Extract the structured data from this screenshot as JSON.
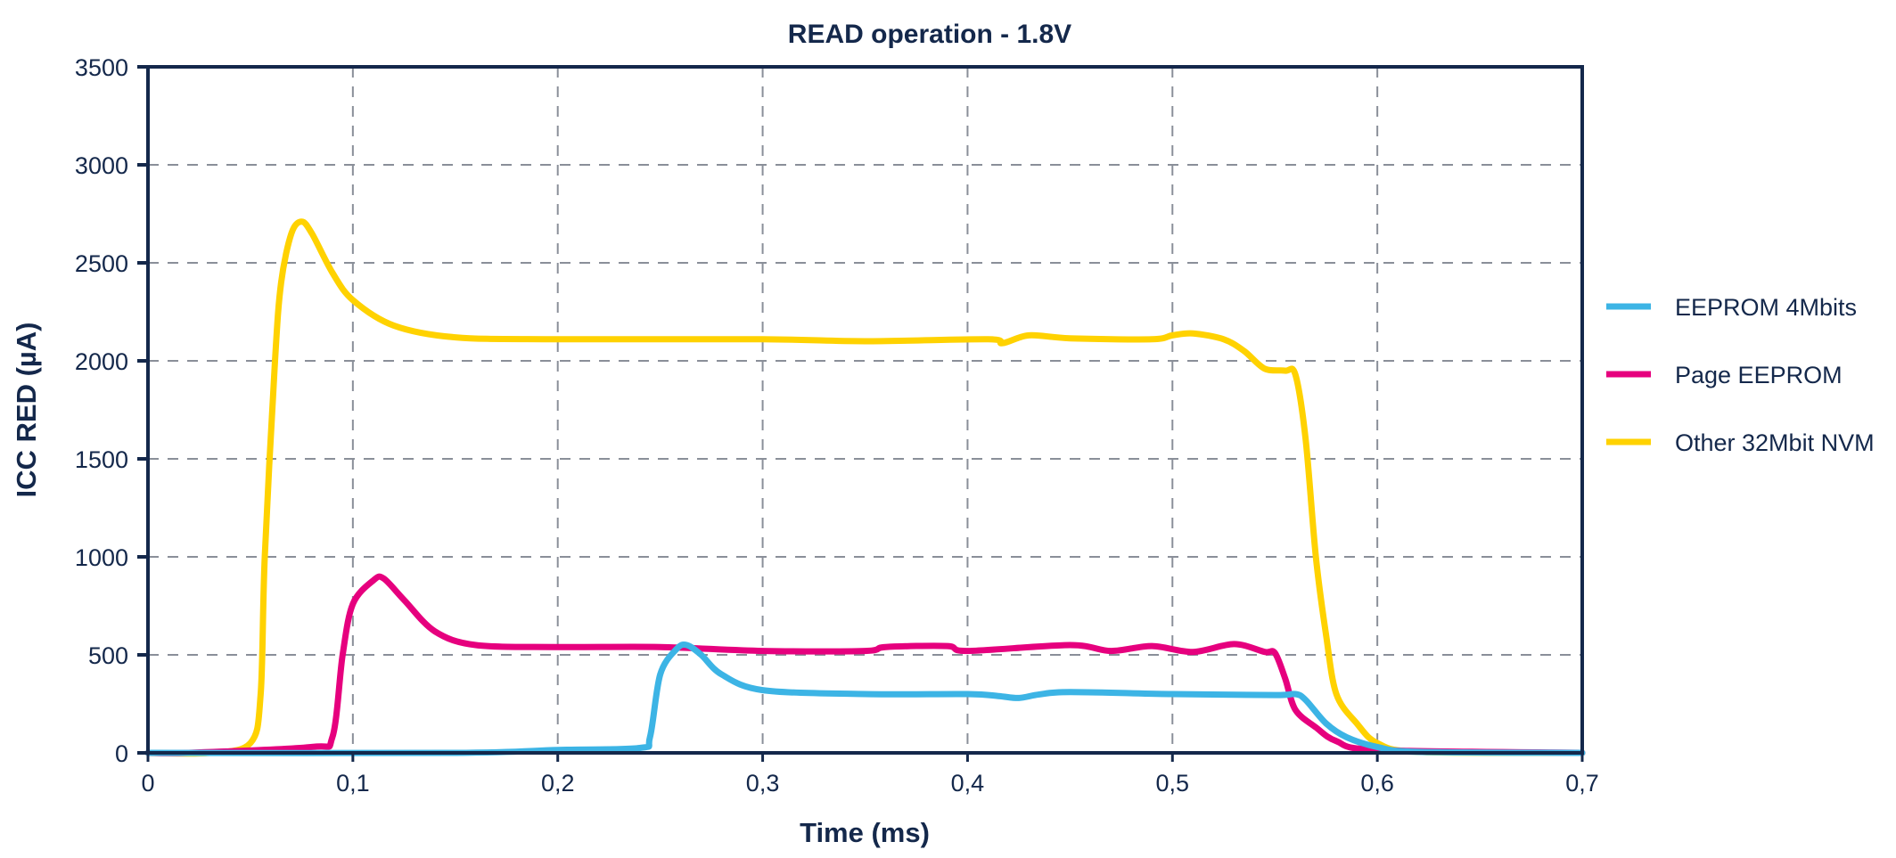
{
  "chart_data": {
    "type": "line",
    "title": "READ operation - 1.8V",
    "xlabel": "Time (ms)",
    "ylabel": "ICC RED (µA)",
    "xlim": [
      0,
      0.7
    ],
    "ylim": [
      0,
      3500
    ],
    "x_ticks": [
      0,
      0.1,
      0.2,
      0.3,
      0.4,
      0.5,
      0.6,
      0.7
    ],
    "x_tick_labels": [
      "0",
      "0,1",
      "0,2",
      "0,3",
      "0,4",
      "0,5",
      "0,6",
      "0,7"
    ],
    "y_ticks": [
      0,
      500,
      1000,
      1500,
      2000,
      2500,
      3000,
      3500
    ],
    "y_tick_labels": [
      "0",
      "500",
      "1000",
      "1500",
      "2000",
      "2500",
      "3000",
      "3500"
    ],
    "grid": true,
    "legend_position": "right",
    "colors": {
      "axis": "#14284b",
      "grid": "#8a8f99"
    },
    "series": [
      {
        "name": "EEPROM 4Mbits",
        "color": "#3cb4e5",
        "x": [
          0,
          0.15,
          0.2,
          0.24,
          0.245,
          0.25,
          0.258,
          0.263,
          0.27,
          0.28,
          0.3,
          0.35,
          0.4,
          0.415,
          0.425,
          0.435,
          0.45,
          0.5,
          0.55,
          0.56,
          0.565,
          0.575,
          0.585,
          0.6,
          0.62,
          0.7
        ],
        "y": [
          0,
          0,
          15,
          25,
          80,
          400,
          530,
          550,
          500,
          400,
          320,
          300,
          300,
          290,
          280,
          298,
          310,
          300,
          295,
          300,
          270,
          150,
          80,
          30,
          5,
          0
        ]
      },
      {
        "name": "Page EEPROM",
        "color": "#e6007e",
        "x": [
          0,
          0.02,
          0.08,
          0.09,
          0.095,
          0.1,
          0.11,
          0.115,
          0.125,
          0.14,
          0.16,
          0.2,
          0.25,
          0.3,
          0.35,
          0.36,
          0.39,
          0.4,
          0.45,
          0.47,
          0.49,
          0.51,
          0.53,
          0.545,
          0.55,
          0.555,
          0.56,
          0.57,
          0.58,
          0.6,
          0.7
        ],
        "y": [
          0,
          0,
          30,
          80,
          500,
          760,
          880,
          890,
          780,
          620,
          550,
          540,
          540,
          520,
          520,
          540,
          545,
          520,
          550,
          520,
          545,
          515,
          555,
          515,
          510,
          380,
          220,
          130,
          60,
          15,
          0
        ]
      },
      {
        "name": "Other 32Mbit NVM",
        "color": "#ffd200",
        "x": [
          0,
          0.03,
          0.05,
          0.055,
          0.057,
          0.062,
          0.065,
          0.07,
          0.075,
          0.08,
          0.09,
          0.1,
          0.12,
          0.15,
          0.2,
          0.3,
          0.35,
          0.41,
          0.417,
          0.43,
          0.45,
          0.49,
          0.5,
          0.51,
          0.525,
          0.535,
          0.545,
          0.555,
          0.56,
          0.565,
          0.57,
          0.575,
          0.58,
          0.59,
          0.6,
          0.62,
          0.7
        ],
        "y": [
          0,
          0,
          50,
          300,
          1000,
          2000,
          2400,
          2650,
          2710,
          2650,
          2450,
          2310,
          2180,
          2120,
          2110,
          2110,
          2100,
          2110,
          2090,
          2130,
          2115,
          2110,
          2130,
          2140,
          2110,
          2050,
          1960,
          1950,
          1930,
          1600,
          1000,
          600,
          300,
          150,
          50,
          5,
          0
        ]
      }
    ]
  }
}
